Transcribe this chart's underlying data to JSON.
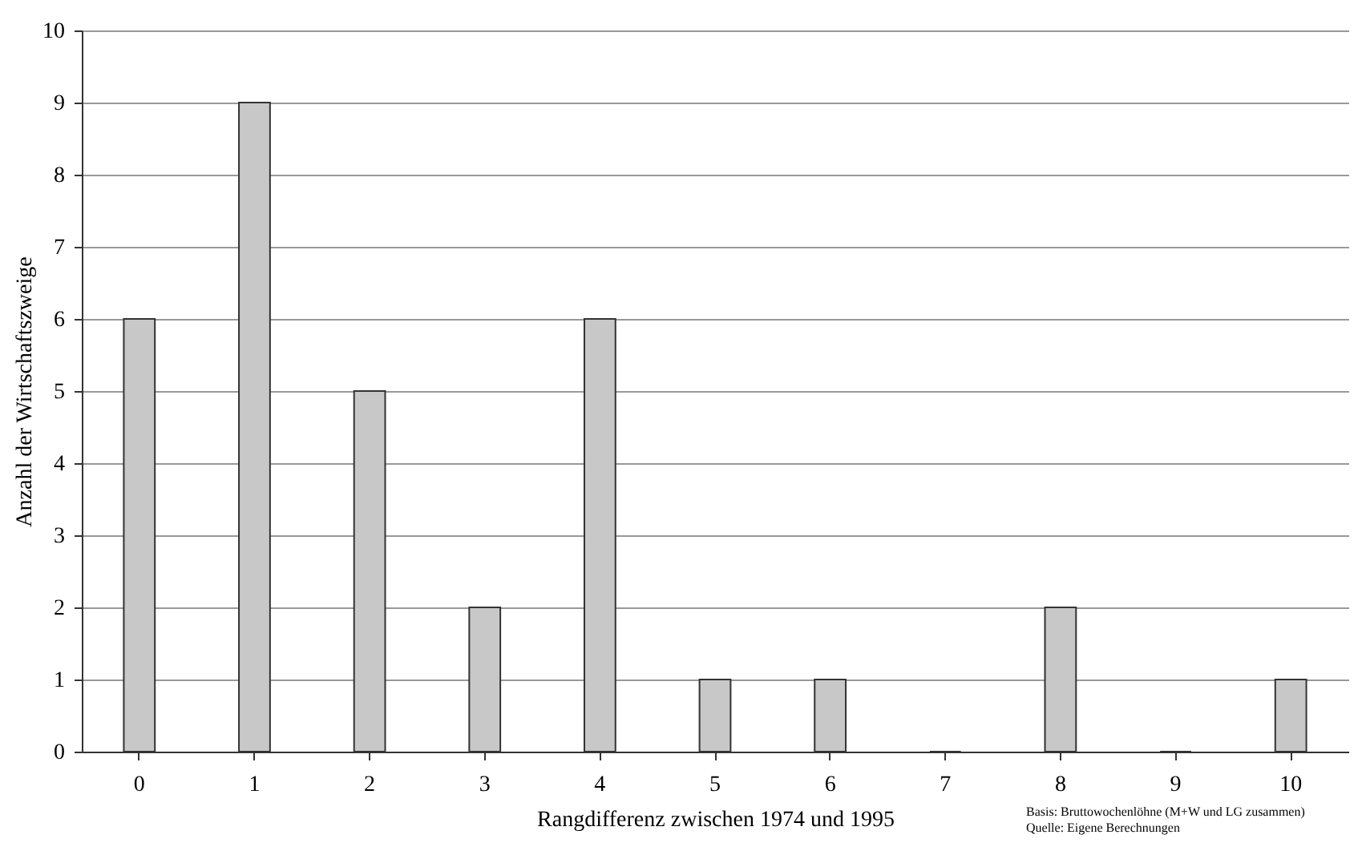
{
  "chart_data": {
    "type": "bar",
    "xlabel": "Rangdifferenz zwischen 1974 und 1995",
    "ylabel": "Anzahl der Wirtschaftszweige",
    "categories": [
      "0",
      "1",
      "2",
      "3",
      "4",
      "5",
      "6",
      "7",
      "8",
      "9",
      "10"
    ],
    "values": [
      6,
      9,
      5,
      2,
      6,
      1,
      1,
      0,
      2,
      0,
      1
    ],
    "color": "#c8c8c8",
    "ylim": [
      0,
      10
    ],
    "yticks": [
      0,
      1,
      2,
      3,
      4,
      5,
      6,
      7,
      8,
      9,
      10
    ],
    "grid": "y",
    "annotations": [
      "Basis: Bruttowochenlöhne (M+W und LG zusammen)",
      "Quelle: Eigene Berechnungen"
    ]
  }
}
